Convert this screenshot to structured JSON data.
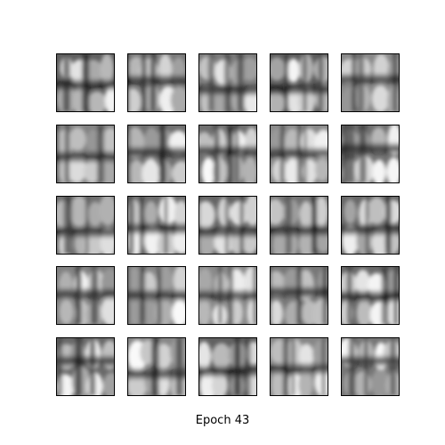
{
  "caption": "Epoch 43"
}
